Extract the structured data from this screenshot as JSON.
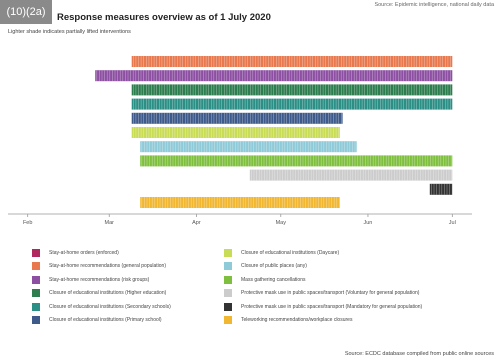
{
  "badge": "(10)(2a)",
  "title": "Response measures overview as of 1 July 2020",
  "source_top": "Source: Epidemic intelligence, national daily data",
  "subtitle": "Lighter shade indicates partially lifted interventions",
  "source_bottom": "Source: ECDC database compiled from public online sources",
  "chart_data": {
    "type": "bar",
    "orientation": "horizontal-timeline",
    "x_axis": {
      "ticks": [
        "Feb",
        "Mar",
        "Apr",
        "May",
        "Jun",
        "Jul"
      ],
      "range": [
        "2020-01-25",
        "2020-07-08"
      ]
    },
    "grid": false,
    "series": [
      {
        "name": "Stay-at-home recommendations (general population)",
        "color": "#e8794f",
        "start": "2020-03-09",
        "end": "2020-07-01"
      },
      {
        "name": "Stay-at-home recommendations (risk groups)",
        "color": "#8c4fa1",
        "start": "2020-02-25",
        "end": "2020-07-01"
      },
      {
        "name": "Closure of educational institutions (Higher education)",
        "color": "#2e7d4f",
        "start": "2020-03-09",
        "end": "2020-07-01"
      },
      {
        "name": "Closure of educational institutions (Secondary schools)",
        "color": "#2b8f86",
        "start": "2020-03-09",
        "end": "2020-07-01"
      },
      {
        "name": "Closure of educational institutions (Primary school)",
        "color": "#3e5a8a",
        "start": "2020-03-09",
        "end": "2020-05-23"
      },
      {
        "name": "Closure of educational institutions (Daycare)",
        "color": "#c9dc55",
        "start": "2020-03-09",
        "end": "2020-05-22"
      },
      {
        "name": "Closure of public places (any)",
        "color": "#8fcad8",
        "start": "2020-03-12",
        "end": "2020-05-28"
      },
      {
        "name": "Mass gathering cancellations",
        "color": "#7fbf3f",
        "start": "2020-03-12",
        "end": "2020-07-01"
      },
      {
        "name": "Protective mask use in public spaces/transport (Voluntary for general population)",
        "color": "#cccccc",
        "start": "2020-04-20",
        "end": "2020-07-01"
      },
      {
        "name": "Protective mask use in public spaces/transport (Mandatory for general population)",
        "color": "#333333",
        "start": "2020-06-23",
        "end": "2020-07-01"
      },
      {
        "name": "Teleworking recommendations/workplace closures",
        "color": "#f2b731",
        "start": "2020-03-12",
        "end": "2020-05-22"
      }
    ]
  },
  "legend": {
    "items": [
      {
        "label": "Stay-at-home orders (enforced)",
        "color": "#b0265e"
      },
      {
        "label": "Stay-at-home recommendations (general population)",
        "color": "#e8794f"
      },
      {
        "label": "Stay-at-home recommendations (risk groups)",
        "color": "#8c4fa1"
      },
      {
        "label": "Closure of educational institutions (Higher education)",
        "color": "#2e7d4f"
      },
      {
        "label": "Closure of educational institutions (Secondary schools)",
        "color": "#2b8f86"
      },
      {
        "label": "Closure of educational institutions (Primary school)",
        "color": "#3e5a8a"
      },
      {
        "label": "Closure of educational institutions (Daycare)",
        "color": "#c9dc55"
      },
      {
        "label": "Closure of public places (any)",
        "color": "#8fcad8"
      },
      {
        "label": "Mass gathering cancellations",
        "color": "#7fbf3f"
      },
      {
        "label": "Protective mask use in public spaces/transport (Voluntary for general population)",
        "color": "#cccccc"
      },
      {
        "label": "Protective mask use in public spaces/transport (Mandatory for general population)",
        "color": "#333333"
      },
      {
        "label": "Teleworking recommendations/workplace closures",
        "color": "#f2b731"
      }
    ]
  }
}
